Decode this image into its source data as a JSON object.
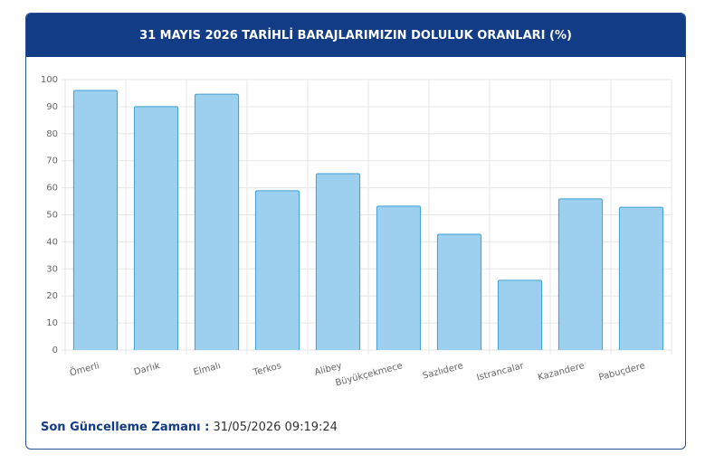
{
  "chart_data": {
    "type": "bar",
    "title": "31 MAYIS 2026 TARİHLİ BARAJLARIMIZIN DOLULUK ORANLARI (%)",
    "categories": [
      "Ömerli",
      "Darlık",
      "Elmalı",
      "Terkos",
      "Alibey",
      "Büyükçekmece",
      "Sazlıdere",
      "Istrancalar",
      "Kazandere",
      "Pabuçdere"
    ],
    "values": [
      96.0,
      90.0,
      94.6,
      58.9,
      65.2,
      53.2,
      42.8,
      25.8,
      55.9,
      52.8
    ],
    "color": "#9dd0ee",
    "border_color": "#3d9fd6",
    "ylim": [
      0,
      100
    ],
    "yticks": [
      0,
      10,
      20,
      30,
      40,
      50,
      60,
      70,
      80,
      90,
      100
    ],
    "grid": true
  },
  "footer": {
    "label": "Son Güncelleme Zamanı :",
    "value": "31/05/2026 09:19:24"
  }
}
